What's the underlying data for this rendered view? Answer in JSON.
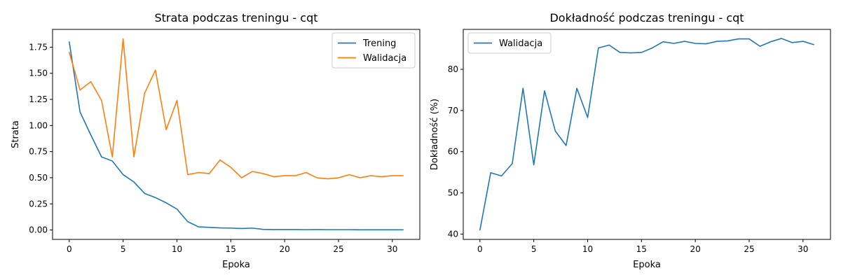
{
  "chart_data": [
    {
      "type": "line",
      "title": "Strata podczas treningu - cqt",
      "xlabel": "Epoka",
      "ylabel": "Strata",
      "xlim": [
        -1.55,
        32.55
      ],
      "ylim": [
        -0.09,
        1.92
      ],
      "xticks": [
        0,
        5,
        10,
        15,
        20,
        25,
        30
      ],
      "yticks": [
        "0.00",
        "0.25",
        "0.50",
        "0.75",
        "1.00",
        "1.25",
        "1.50",
        "1.75"
      ],
      "legend": "top-right",
      "grid": false,
      "x": [
        0,
        1,
        2,
        3,
        4,
        5,
        6,
        7,
        8,
        9,
        10,
        11,
        12,
        13,
        14,
        15,
        16,
        17,
        18,
        19,
        20,
        21,
        22,
        23,
        24,
        25,
        26,
        27,
        28,
        29,
        30,
        31
      ],
      "series": [
        {
          "name": "Trening",
          "color": "#1f77b4",
          "values": [
            1.8,
            1.13,
            0.91,
            0.7,
            0.66,
            0.53,
            0.46,
            0.35,
            0.31,
            0.26,
            0.2,
            0.08,
            0.03,
            0.025,
            0.02,
            0.018,
            0.014,
            0.018,
            0.006,
            0.004,
            0.004,
            0.004,
            0.003,
            0.004,
            0.003,
            0.003,
            0.003,
            0.002,
            0.002,
            0.002,
            0.002,
            0.002
          ]
        },
        {
          "name": "Walidacja",
          "color": "#ff7f0e",
          "values": [
            1.7,
            1.34,
            1.42,
            1.24,
            0.7,
            1.83,
            0.7,
            1.31,
            1.53,
            0.96,
            1.24,
            0.53,
            0.55,
            0.54,
            0.67,
            0.6,
            0.5,
            0.56,
            0.54,
            0.51,
            0.52,
            0.52,
            0.55,
            0.5,
            0.49,
            0.5,
            0.53,
            0.5,
            0.52,
            0.51,
            0.52,
            0.52
          ]
        }
      ]
    },
    {
      "type": "line",
      "title": "Dokładność podczas treningu - cqt",
      "xlabel": "Epoka",
      "ylabel": "Dokładność (%)",
      "xlim": [
        -1.55,
        32.55
      ],
      "ylim": [
        38.7,
        89.7
      ],
      "xticks": [
        0,
        5,
        10,
        15,
        20,
        25,
        30
      ],
      "yticks": [
        "40",
        "50",
        "60",
        "70",
        "80"
      ],
      "legend": "top-left",
      "grid": false,
      "x": [
        0,
        1,
        2,
        3,
        4,
        5,
        6,
        7,
        8,
        9,
        10,
        11,
        12,
        13,
        14,
        15,
        16,
        17,
        18,
        19,
        20,
        21,
        22,
        23,
        24,
        25,
        26,
        27,
        28,
        29,
        30,
        31
      ],
      "series": [
        {
          "name": "Walidacja",
          "color": "#1f77b4",
          "values": [
            41.0,
            54.9,
            54.1,
            57.1,
            75.4,
            56.8,
            74.8,
            65.0,
            61.5,
            75.4,
            68.3,
            85.2,
            85.9,
            84.1,
            84.0,
            84.1,
            85.2,
            86.7,
            86.3,
            86.8,
            86.3,
            86.2,
            86.8,
            86.9,
            87.4,
            87.4,
            85.6,
            86.7,
            87.5,
            86.5,
            86.8,
            86.0
          ]
        }
      ]
    }
  ]
}
